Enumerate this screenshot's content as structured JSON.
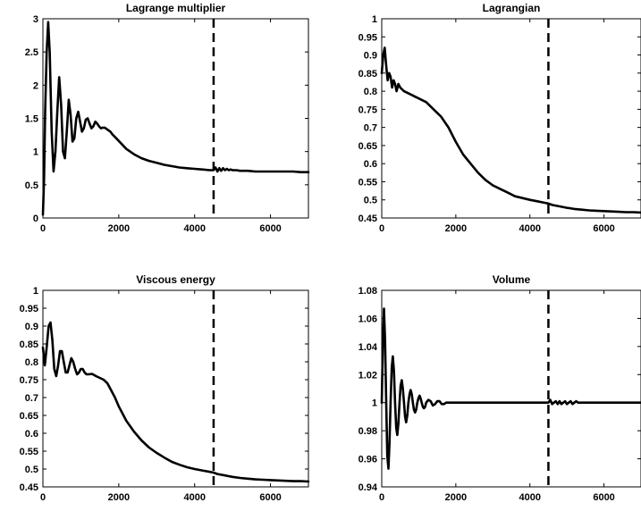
{
  "figure": {
    "line_color": "#000000",
    "background": "#ffffff",
    "marker_x": 4500,
    "marker_style": "dashed"
  },
  "chart_data": [
    {
      "type": "line",
      "title": "Lagrange multiplier",
      "xlim": [
        0,
        7000
      ],
      "ylim": [
        0,
        3
      ],
      "xticks": [
        0,
        2000,
        4000,
        6000
      ],
      "yticks": [
        0,
        0.5,
        1,
        1.5,
        2,
        2.5,
        3
      ],
      "xticklabels": [
        "0",
        "2000",
        "4000",
        "6000"
      ],
      "yticklabels": [
        "0",
        "0.5",
        "1",
        "1.5",
        "2",
        "2.5",
        "3"
      ],
      "grid": false,
      "series": [
        {
          "x": [
            0,
            30,
            60,
            100,
            140,
            180,
            230,
            280,
            330,
            380,
            430,
            480,
            530,
            580,
            630,
            680,
            730,
            780,
            830,
            880,
            930,
            980,
            1030,
            1080,
            1130,
            1180,
            1230,
            1280,
            1330,
            1380,
            1430,
            1480,
            1530,
            1580,
            1630,
            1680,
            1730,
            1780,
            1830,
            1900,
            2000,
            2200,
            2400,
            2600,
            2800,
            3000,
            3200,
            3400,
            3600,
            3800,
            4000,
            4200,
            4400,
            4500,
            4550,
            4600,
            4650,
            4700,
            4750,
            4800,
            4850,
            4900,
            4950,
            5000,
            5100,
            5200,
            5300,
            5400,
            5600,
            5800,
            6000,
            6200,
            6400,
            6600,
            6800,
            7000
          ],
          "y": [
            0.05,
            0.6,
            1.6,
            2.5,
            2.95,
            2.5,
            1.3,
            0.7,
            1.0,
            1.6,
            2.12,
            1.7,
            1.0,
            0.9,
            1.3,
            1.78,
            1.55,
            1.15,
            1.2,
            1.5,
            1.6,
            1.45,
            1.3,
            1.35,
            1.48,
            1.5,
            1.42,
            1.35,
            1.38,
            1.45,
            1.42,
            1.38,
            1.35,
            1.36,
            1.36,
            1.34,
            1.32,
            1.3,
            1.26,
            1.22,
            1.16,
            1.04,
            0.96,
            0.9,
            0.86,
            0.83,
            0.8,
            0.78,
            0.76,
            0.75,
            0.74,
            0.73,
            0.72,
            0.72,
            0.76,
            0.7,
            0.75,
            0.71,
            0.75,
            0.72,
            0.74,
            0.72,
            0.73,
            0.72,
            0.72,
            0.71,
            0.71,
            0.71,
            0.7,
            0.7,
            0.7,
            0.7,
            0.7,
            0.7,
            0.69,
            0.69
          ]
        }
      ]
    },
    {
      "type": "line",
      "title": "Lagrangian",
      "xlim": [
        0,
        7000
      ],
      "ylim": [
        0.45,
        1
      ],
      "xticks": [
        0,
        2000,
        4000,
        6000
      ],
      "yticks": [
        0.45,
        0.5,
        0.55,
        0.6,
        0.65,
        0.7,
        0.75,
        0.8,
        0.85,
        0.9,
        0.95,
        1
      ],
      "xticklabels": [
        "0",
        "2000",
        "4000",
        "6000"
      ],
      "yticklabels": [
        "0.45",
        "0.5",
        "0.55",
        "0.6",
        "0.65",
        "0.7",
        "0.75",
        "0.8",
        "0.85",
        "0.9",
        "0.95",
        "1"
      ],
      "grid": false,
      "series": [
        {
          "x": [
            0,
            40,
            80,
            120,
            160,
            200,
            240,
            280,
            320,
            360,
            400,
            450,
            500,
            550,
            600,
            700,
            800,
            900,
            1000,
            1200,
            1400,
            1600,
            1800,
            2000,
            2200,
            2400,
            2600,
            2800,
            3000,
            3200,
            3400,
            3600,
            3800,
            4000,
            4200,
            4400,
            4500,
            4600,
            4800,
            5000,
            5200,
            5400,
            5600,
            5800,
            6000,
            6200,
            6400,
            6600,
            6800,
            7000
          ],
          "y": [
            0.85,
            0.9,
            0.92,
            0.87,
            0.83,
            0.85,
            0.84,
            0.81,
            0.83,
            0.82,
            0.8,
            0.82,
            0.81,
            0.805,
            0.8,
            0.795,
            0.79,
            0.785,
            0.78,
            0.77,
            0.75,
            0.73,
            0.7,
            0.66,
            0.625,
            0.6,
            0.575,
            0.555,
            0.54,
            0.53,
            0.52,
            0.51,
            0.505,
            0.5,
            0.496,
            0.492,
            0.49,
            0.486,
            0.482,
            0.478,
            0.475,
            0.473,
            0.471,
            0.47,
            0.469,
            0.468,
            0.467,
            0.466,
            0.466,
            0.465
          ]
        }
      ]
    },
    {
      "type": "line",
      "title": "Viscous energy",
      "xlim": [
        0,
        7000
      ],
      "ylim": [
        0.45,
        1
      ],
      "xticks": [
        0,
        2000,
        4000,
        6000
      ],
      "yticks": [
        0.45,
        0.5,
        0.55,
        0.6,
        0.65,
        0.7,
        0.75,
        0.8,
        0.85,
        0.9,
        0.95,
        1
      ],
      "xticklabels": [
        "0",
        "2000",
        "4000",
        "6000"
      ],
      "yticklabels": [
        "0.45",
        "0.5",
        "0.55",
        "0.6",
        "0.65",
        "0.7",
        "0.75",
        "0.8",
        "0.85",
        "0.9",
        "0.95",
        "1"
      ],
      "grid": false,
      "series": [
        {
          "x": [
            0,
            50,
            100,
            150,
            200,
            250,
            300,
            350,
            400,
            450,
            500,
            550,
            600,
            650,
            700,
            750,
            800,
            850,
            900,
            950,
            1000,
            1050,
            1100,
            1150,
            1200,
            1300,
            1400,
            1500,
            1600,
            1700,
            1800,
            1900,
            2000,
            2200,
            2400,
            2600,
            2800,
            3000,
            3200,
            3400,
            3600,
            3800,
            4000,
            4200,
            4400,
            4500,
            4600,
            4800,
            5000,
            5200,
            5400,
            5600,
            5800,
            6000,
            6200,
            6400,
            6600,
            6800,
            7000
          ],
          "y": [
            0.84,
            0.79,
            0.84,
            0.9,
            0.91,
            0.86,
            0.78,
            0.76,
            0.79,
            0.83,
            0.83,
            0.8,
            0.77,
            0.77,
            0.79,
            0.81,
            0.8,
            0.78,
            0.765,
            0.77,
            0.78,
            0.78,
            0.77,
            0.765,
            0.765,
            0.766,
            0.76,
            0.755,
            0.75,
            0.74,
            0.72,
            0.7,
            0.675,
            0.635,
            0.605,
            0.58,
            0.56,
            0.545,
            0.532,
            0.52,
            0.512,
            0.505,
            0.5,
            0.496,
            0.492,
            0.49,
            0.486,
            0.482,
            0.478,
            0.475,
            0.473,
            0.471,
            0.47,
            0.469,
            0.468,
            0.467,
            0.466,
            0.466,
            0.465
          ]
        }
      ]
    },
    {
      "type": "line",
      "title": "Volume",
      "xlim": [
        0,
        7000
      ],
      "ylim": [
        0.94,
        1.08
      ],
      "xticks": [
        0,
        2000,
        4000,
        6000
      ],
      "yticks": [
        0.94,
        0.96,
        0.98,
        1,
        1.02,
        1.04,
        1.06,
        1.08
      ],
      "xticklabels": [
        "0",
        "2000",
        "4000",
        "6000"
      ],
      "yticklabels": [
        "0.94",
        "0.96",
        "0.98",
        "1",
        "1.02",
        "1.04",
        "1.06",
        "1.08"
      ],
      "grid": false,
      "series": [
        {
          "x": [
            0,
            30,
            60,
            90,
            120,
            150,
            180,
            210,
            240,
            270,
            300,
            330,
            360,
            390,
            420,
            450,
            480,
            510,
            540,
            570,
            600,
            630,
            660,
            690,
            720,
            750,
            780,
            810,
            840,
            870,
            900,
            930,
            960,
            990,
            1020,
            1050,
            1080,
            1110,
            1140,
            1170,
            1200,
            1260,
            1320,
            1380,
            1440,
            1500,
            1560,
            1620,
            1680,
            1740,
            1800,
            1900,
            2000,
            2200,
            2500,
            3000,
            3500,
            4000,
            4400,
            4500,
            4550,
            4600,
            4650,
            4700,
            4750,
            4800,
            4850,
            4900,
            4950,
            5000,
            5050,
            5100,
            5150,
            5200,
            5250,
            5300,
            5400,
            5500,
            5700,
            6000,
            6500,
            7000
          ],
          "y": [
            1.0,
            1.04,
            1.067,
            1.045,
            1.0,
            0.962,
            0.953,
            0.972,
            1.0,
            1.025,
            1.033,
            1.022,
            1.0,
            0.982,
            0.977,
            0.985,
            1.0,
            1.012,
            1.016,
            1.01,
            1.0,
            0.99,
            0.986,
            0.991,
            1.0,
            1.006,
            1.009,
            1.006,
            1.0,
            0.995,
            0.993,
            0.995,
            1.0,
            1.003,
            1.005,
            1.003,
            1.0,
            0.997,
            0.996,
            0.997,
            1.0,
            1.002,
            1.001,
            0.998,
            0.999,
            1.001,
            1.001,
            0.999,
            0.999,
            1.0,
            1.0,
            1.0,
            1.0,
            1.0,
            1.0,
            1.0,
            1.0,
            1.0,
            1.0,
            1.0,
            1.002,
            0.999,
            1.0,
            1.001,
            0.999,
            1.001,
            0.999,
            1.0,
            1.001,
            0.999,
            1.0,
            1.001,
            0.999,
            1.0,
            1.001,
            1.0,
            1.0,
            1.0,
            1.0,
            1.0,
            1.0,
            1.0
          ]
        }
      ]
    }
  ]
}
